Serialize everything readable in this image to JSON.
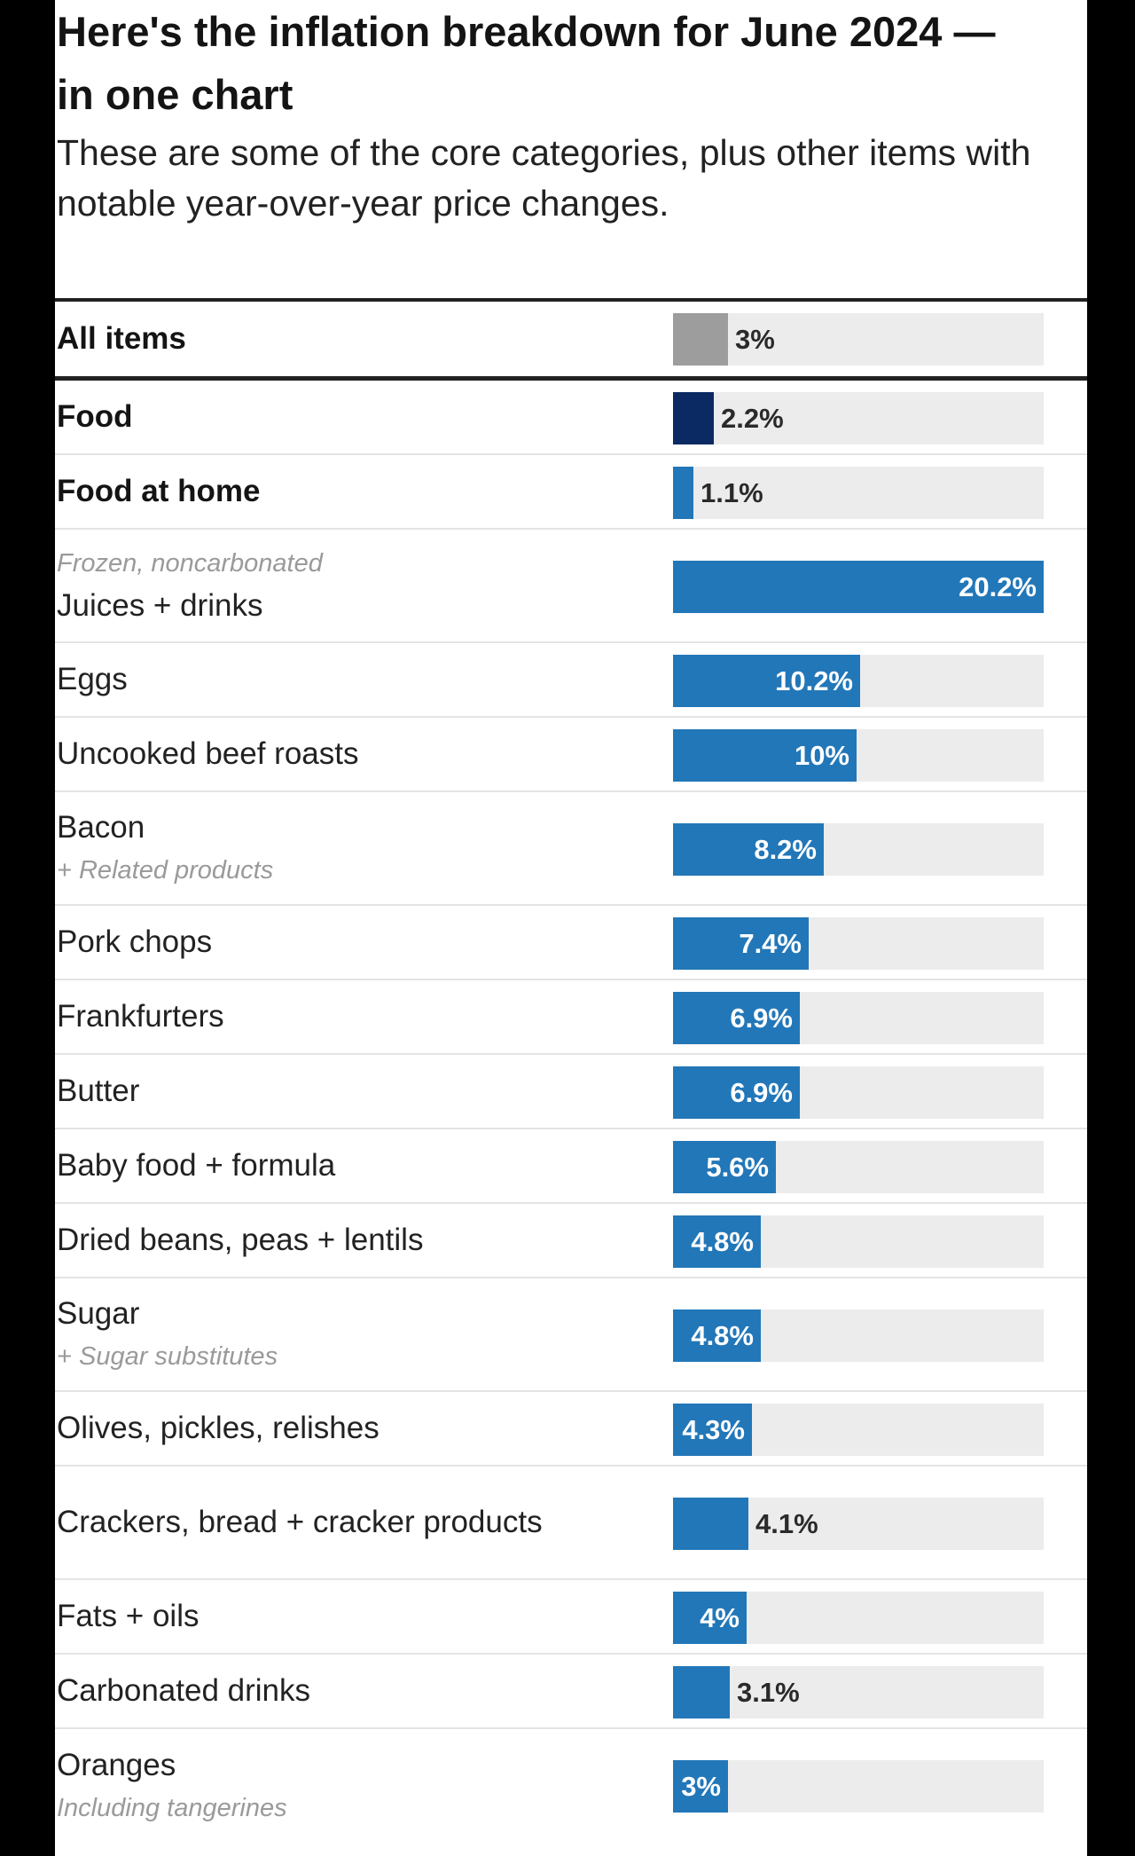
{
  "header": {
    "title": "Here's the inflation breakdown for June 2024 — in one chart",
    "subtitle": "These are some of the core categories, plus other items with notable year-over-year price changes."
  },
  "colors": {
    "all_items": "#9d9d9d",
    "food": "#0b2a63",
    "default": "#2277b8",
    "track": "#ececec"
  },
  "chart_data": {
    "type": "bar",
    "orientation": "horizontal",
    "unit": "%",
    "title": "Here's the inflation breakdown for June 2024 — in one chart",
    "subtitle": "These are some of the core categories, plus other items with notable year-over-year price changes.",
    "xlim": [
      0,
      20.2
    ],
    "grid": false,
    "categories": [
      "All items",
      "Food",
      "Food at home",
      "Juices + drinks",
      "Eggs",
      "Uncooked beef roasts",
      "Bacon",
      "Pork chops",
      "Frankfurters",
      "Butter",
      "Baby food + formula",
      "Dried beans, peas + lentils",
      "Sugar",
      "Olives, pickles, relishes",
      "Crackers, bread + cracker products",
      "Fats + oils",
      "Carbonated drinks",
      "Oranges"
    ],
    "values": [
      3,
      2.2,
      1.1,
      20.2,
      10.2,
      10,
      8.2,
      7.4,
      6.9,
      6.9,
      5.6,
      4.8,
      4.8,
      4.3,
      4.1,
      4,
      3.1,
      3
    ],
    "rows": [
      {
        "name": "All items",
        "value": 3,
        "label": "3%",
        "bold": true,
        "color": "all_items"
      },
      {
        "name": "Food",
        "value": 2.2,
        "label": "2.2%",
        "bold": true,
        "color": "food"
      },
      {
        "name": "Food at home",
        "value": 1.1,
        "label": "1.1%",
        "bold": true,
        "color": "default"
      },
      {
        "name": "Juices + drinks",
        "pre_note": "Frozen, noncarbonated",
        "value": 20.2,
        "label": "20.2%",
        "color": "default"
      },
      {
        "name": "Eggs",
        "value": 10.2,
        "label": "10.2%",
        "color": "default"
      },
      {
        "name": "Uncooked beef roasts",
        "value": 10,
        "label": "10%",
        "color": "default"
      },
      {
        "name": "Bacon",
        "post_note": "+ Related products",
        "value": 8.2,
        "label": "8.2%",
        "color": "default"
      },
      {
        "name": "Pork chops",
        "value": 7.4,
        "label": "7.4%",
        "color": "default"
      },
      {
        "name": "Frankfurters",
        "value": 6.9,
        "label": "6.9%",
        "color": "default"
      },
      {
        "name": "Butter",
        "value": 6.9,
        "label": "6.9%",
        "color": "default"
      },
      {
        "name": "Baby food + formula",
        "value": 5.6,
        "label": "5.6%",
        "color": "default"
      },
      {
        "name": "Dried beans, peas + lentils",
        "value": 4.8,
        "label": "4.8%",
        "color": "default"
      },
      {
        "name": "Sugar",
        "post_note": "+ Sugar substitutes",
        "value": 4.8,
        "label": "4.8%",
        "color": "default"
      },
      {
        "name": "Olives, pickles, relishes",
        "value": 4.3,
        "label": "4.3%",
        "color": "default"
      },
      {
        "name": "Crackers, bread + cracker products",
        "value": 4.1,
        "label": "4.1%",
        "color": "default"
      },
      {
        "name": "Fats + oils",
        "value": 4,
        "label": "4%",
        "color": "default"
      },
      {
        "name": "Carbonated drinks",
        "value": 3.1,
        "label": "3.1%",
        "color": "default"
      },
      {
        "name": "Oranges",
        "post_note": "Including tangerines",
        "value": 3,
        "label": "3%",
        "color": "default"
      }
    ]
  }
}
